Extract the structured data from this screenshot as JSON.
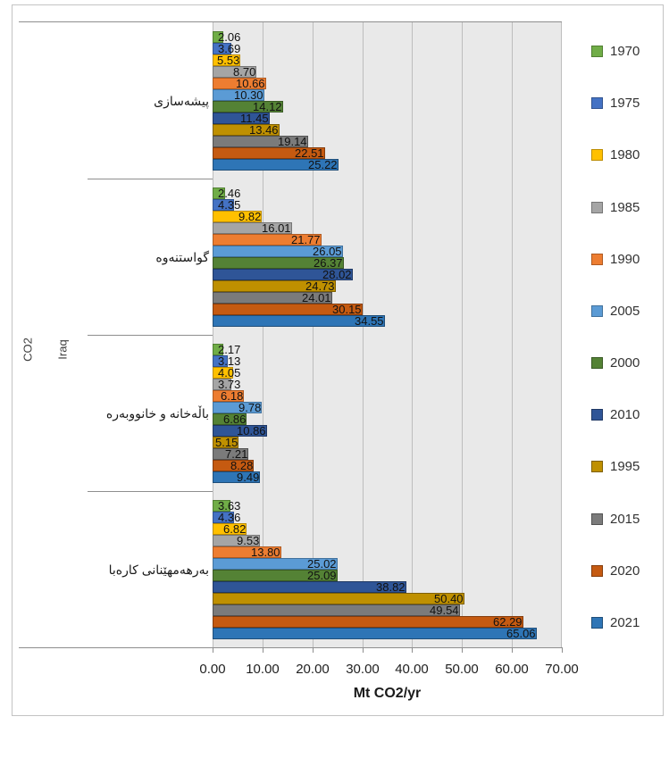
{
  "chart_data": {
    "type": "bar",
    "orientation": "horizontal",
    "xlabel": "Mt CO2/yr",
    "axis_outer_label_1": "CO2",
    "axis_outer_label_2": "Iraq",
    "xlim": [
      0,
      70
    ],
    "x_ticks": [
      "0.00",
      "10.00",
      "20.00",
      "30.00",
      "40.00",
      "50.00",
      "60.00",
      "70.00"
    ],
    "grid": true,
    "legend_position": "right",
    "value_label_decimals": 2,
    "categories": [
      "پیشەسازی",
      "گواستنەوە",
      "باڵەخانە و خانووبەرە",
      "بەرهەمهێنانی کارەبا"
    ],
    "series": [
      {
        "name": "1970",
        "color": "#70AD47",
        "border": "#507E32",
        "values": [
          2.06,
          2.46,
          2.17,
          3.63
        ]
      },
      {
        "name": "1975",
        "color": "#4472C4",
        "border": "#31538F",
        "values": [
          3.69,
          4.35,
          3.13,
          4.36
        ]
      },
      {
        "name": "1980",
        "color": "#FFC000",
        "border": "#BC8C00",
        "values": [
          5.53,
          9.82,
          4.05,
          6.82
        ]
      },
      {
        "name": "1985",
        "color": "#A5A5A5",
        "border": "#767676",
        "values": [
          8.7,
          16.01,
          3.73,
          9.53
        ]
      },
      {
        "name": "1990",
        "color": "#ED7D31",
        "border": "#AE5A21",
        "values": [
          10.66,
          21.77,
          6.18,
          13.8
        ]
      },
      {
        "name": "2005",
        "color": "#5B9BD5",
        "border": "#41719C",
        "values": [
          10.3,
          26.05,
          9.78,
          25.02
        ]
      },
      {
        "name": "2000",
        "color": "#548235",
        "border": "#3A5A25",
        "values": [
          14.12,
          26.37,
          6.86,
          25.09
        ]
      },
      {
        "name": "2010",
        "color": "#2F5597",
        "border": "#1F3864",
        "values": [
          11.45,
          28.02,
          10.86,
          38.82
        ]
      },
      {
        "name": "1995",
        "color": "#BF9000",
        "border": "#7F6000",
        "values": [
          13.46,
          24.73,
          5.15,
          50.4
        ]
      },
      {
        "name": "2015",
        "color": "#7B7B7B",
        "border": "#525252",
        "values": [
          19.14,
          24.01,
          7.21,
          49.54
        ]
      },
      {
        "name": "2020",
        "color": "#C55A11",
        "border": "#843C0C",
        "values": [
          22.51,
          30.15,
          8.28,
          62.29
        ]
      },
      {
        "name": "2021",
        "color": "#2E75B6",
        "border": "#1F4E79",
        "values": [
          25.22,
          34.55,
          9.49,
          65.06
        ]
      }
    ]
  },
  "colors": {
    "plot_background": "#E9E9E9",
    "gridline": "#BDBDBD",
    "axis_line": "#8E8E8E",
    "chart_border": "#C3C3C3"
  }
}
